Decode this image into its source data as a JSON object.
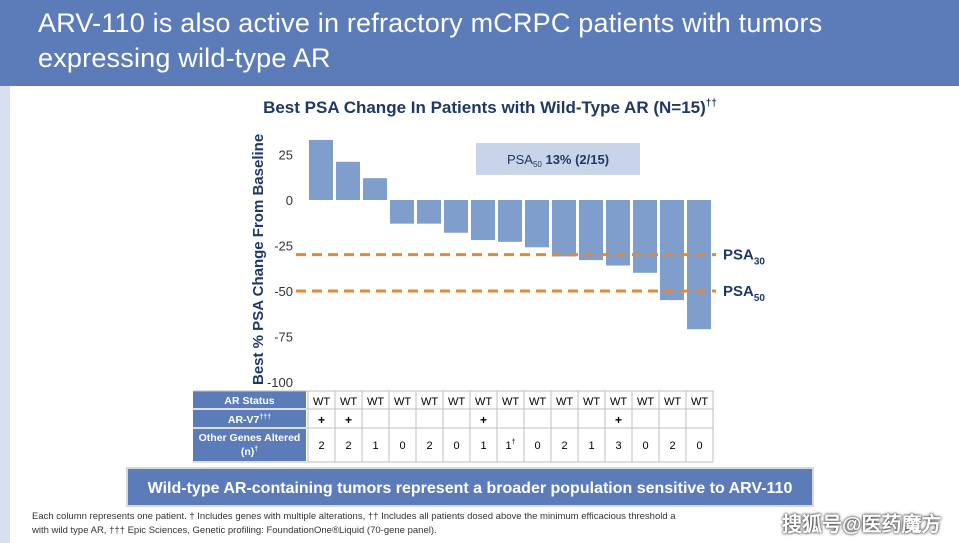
{
  "slide": {
    "title_line1": "ARV-110 is also active in refractory mCRPC patients with tumors",
    "title_line2": "expressing wild-type AR",
    "callout": "Wild-type AR-containing tumors represent a broader population sensitive to ARV-110",
    "footnote_line1": "Each column represents one patient. † Includes genes with multiple alterations, †† Includes all patients dosed above the minimum efficacious threshold a",
    "footnote_line2": "with wild type AR, ††† Epic Sciences, Genetic profiling: FoundationOne®Liquid (70-gene panel).",
    "watermark": "搜狐号@医药魔方"
  },
  "colors": {
    "header": "#5b7cb8",
    "bar": "#7f9ecb",
    "dashed": "#e08a3c",
    "callout": "#5b7cb8",
    "box": "#c9d4e8"
  },
  "chart_data": {
    "type": "bar",
    "title": "Best PSA Change In Patients with Wild-Type AR (N=15)",
    "title_sup": "††",
    "ylabel": "Best % PSA Change From Baseline",
    "ylim": [
      -100,
      35
    ],
    "yticks": [
      25,
      0,
      -25,
      -50,
      -75,
      -100
    ],
    "values": [
      33,
      21,
      12,
      -13,
      -13,
      -18,
      -22,
      -23,
      -26,
      -31,
      -33,
      -36,
      -40,
      -55,
      -71
    ],
    "thresholds": [
      {
        "value": -30,
        "label": "PSA",
        "sub": "30"
      },
      {
        "value": -50,
        "label": "PSA",
        "sub": "50"
      }
    ],
    "annotation": {
      "pre": "PSA",
      "sub": "50",
      "post": " 13% (2/15)"
    },
    "table": {
      "row_labels": [
        "AR Status",
        "AR-V7",
        "Other Genes Altered"
      ],
      "row_label_sups": [
        "",
        "†††",
        ""
      ],
      "row3_label_line2": "(n)",
      "row3_label_line2_sup": "†",
      "ar_status": [
        "WT",
        "WT",
        "WT",
        "WT",
        "WT",
        "WT",
        "WT",
        "WT",
        "WT",
        "WT",
        "WT",
        "WT",
        "WT",
        "WT",
        "WT"
      ],
      "ar_v7": [
        "+",
        "+",
        "",
        "",
        "",
        "",
        "+",
        "",
        "",
        "",
        "",
        "+",
        "",
        "",
        ""
      ],
      "other_genes": [
        "2",
        "2",
        "1",
        "0",
        "2",
        "0",
        "1",
        "1",
        "0",
        "2",
        "1",
        "3",
        "0",
        "2",
        "0"
      ],
      "other_genes_sups": [
        "",
        "",
        "",
        "",
        "",
        "",
        "",
        "†",
        "",
        "",
        "",
        "",
        "",
        "",
        ""
      ]
    }
  }
}
